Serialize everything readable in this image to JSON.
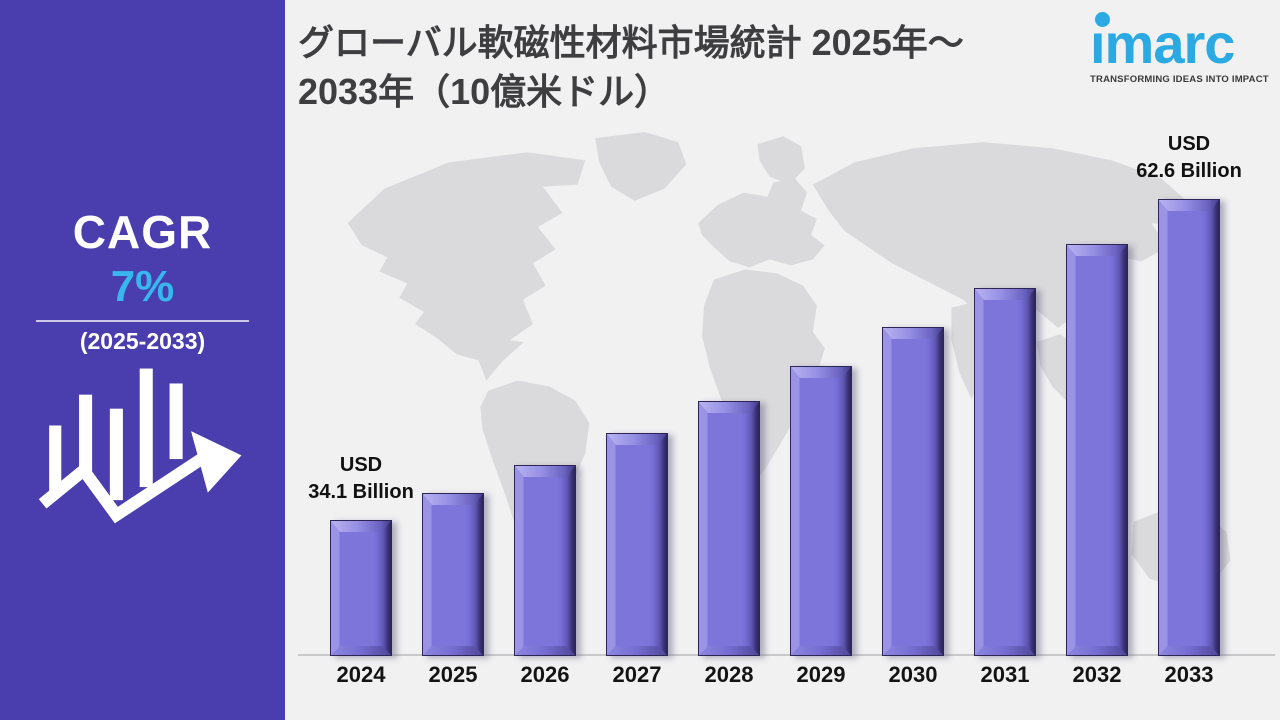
{
  "sidebar": {
    "cagr_label": "CAGR",
    "cagr_value": "7%",
    "period": "(2025-2033)"
  },
  "header": {
    "title_line1": "グローバル軟磁性材料市場統計 2025年～",
    "title_line2": "2033年（10億米ドル）"
  },
  "logo": {
    "brand": "imarc",
    "tagline": "TRANSFORMING IDEAS INTO IMPACT"
  },
  "chart_data": {
    "type": "bar",
    "title": "グローバル軟磁性材料市場統計 2025年～2033年（10億米ドル）",
    "unit": "USD Billion",
    "categories": [
      "2024",
      "2025",
      "2026",
      "2027",
      "2028",
      "2029",
      "2030",
      "2031",
      "2032",
      "2033"
    ],
    "values": [
      34.1,
      36.5,
      39.0,
      41.8,
      44.7,
      47.8,
      51.2,
      54.7,
      58.6,
      62.6
    ],
    "labeled_values": [
      {
        "category": "2024",
        "line1": "USD",
        "line2": "34.1 Billion"
      },
      {
        "category": "2033",
        "line1": "USD",
        "line2": "62.6 Billion"
      }
    ],
    "cagr": "7%",
    "cagr_period": "2025-2033",
    "grid": false,
    "legend": false,
    "baseline_axis": true
  },
  "colors": {
    "sidebar_bg": "#4a3eae",
    "accent_cyan": "#38b7ee",
    "bar_fill": "#7d75da",
    "bar_edge": "#2b2656",
    "background": "#f1f1f2",
    "map_fill": "#dadadc",
    "title_text": "#3e3e40",
    "imarc_blue": "#2aa9e2"
  }
}
